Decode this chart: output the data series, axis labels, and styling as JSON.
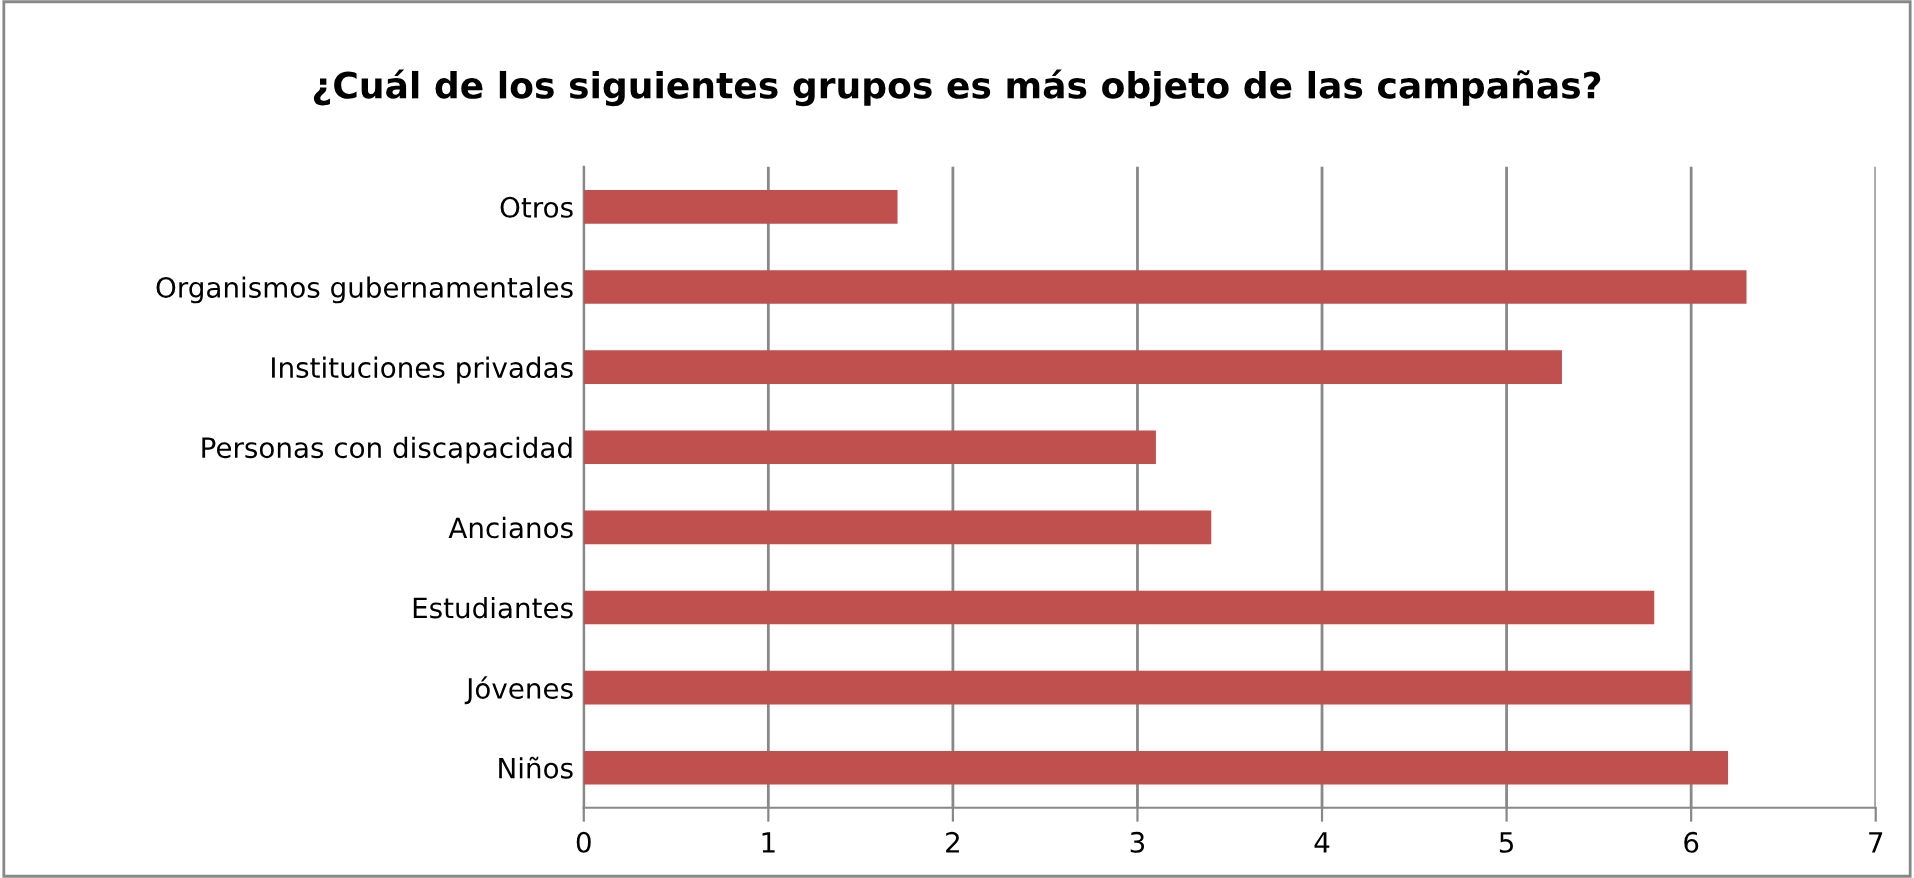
{
  "chart_data": {
    "type": "bar",
    "orientation": "horizontal",
    "title": "¿Cuál de los siguientes grupos es más objeto de las campañas?",
    "categories": [
      "Otros",
      "Organismos gubernamentales",
      "Instituciones privadas",
      "Personas con discapacidad",
      "Ancianos",
      "Estudiantes",
      "Jóvenes",
      "Niños"
    ],
    "values": [
      1.7,
      6.3,
      5.3,
      3.1,
      3.4,
      5.8,
      6.0,
      6.2
    ],
    "color": "#c0504d",
    "xlim": [
      0,
      7
    ],
    "xticks": [
      0,
      1,
      2,
      3,
      4,
      5,
      6,
      7
    ],
    "grid": "x",
    "legend": false
  }
}
